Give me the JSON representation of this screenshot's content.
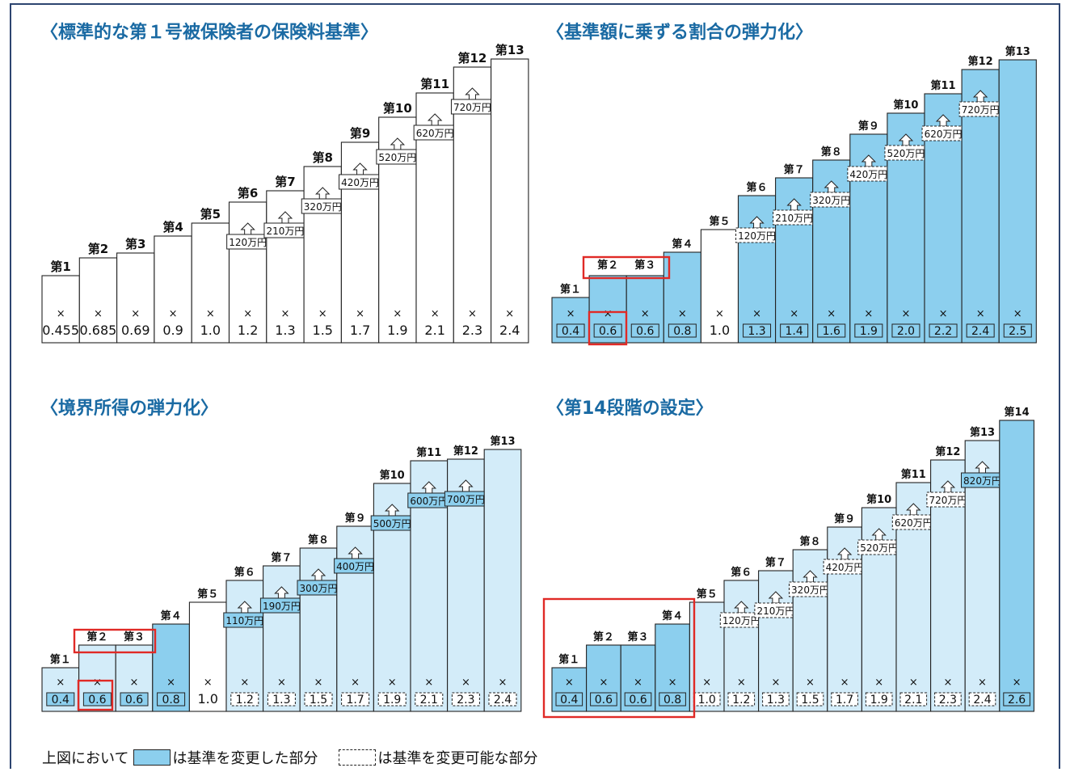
{
  "panels": [
    {
      "title": "〈標準的な第１号被保険者の保険料基準〉",
      "tiers": [
        {
          "label": "第1",
          "multiplier": "0.455",
          "style": "plain",
          "multBox": "none"
        },
        {
          "label": "第2",
          "multiplier": "0.685",
          "style": "plain",
          "multBox": "none"
        },
        {
          "label": "第3",
          "multiplier": "0.69",
          "style": "plain",
          "multBox": "none"
        },
        {
          "label": "第4",
          "multiplier": "0.9",
          "style": "plain",
          "multBox": "none"
        },
        {
          "label": "第5",
          "multiplier": "1.0",
          "style": "plain",
          "multBox": "none"
        },
        {
          "label": "第6",
          "multiplier": "1.2",
          "style": "plain",
          "multBox": "none",
          "threshold": "120万円",
          "thrBox": "plain"
        },
        {
          "label": "第7",
          "multiplier": "1.3",
          "style": "plain",
          "multBox": "none",
          "threshold": "210万円",
          "thrBox": "plain"
        },
        {
          "label": "第8",
          "multiplier": "1.5",
          "style": "plain",
          "multBox": "none",
          "threshold": "320万円",
          "thrBox": "plain"
        },
        {
          "label": "第9",
          "multiplier": "1.7",
          "style": "plain",
          "multBox": "none",
          "threshold": "420万円",
          "thrBox": "plain"
        },
        {
          "label": "第10",
          "multiplier": "1.9",
          "style": "plain",
          "multBox": "none",
          "threshold": "520万円",
          "thrBox": "plain"
        },
        {
          "label": "第11",
          "multiplier": "2.1",
          "style": "plain",
          "multBox": "none",
          "threshold": "620万円",
          "thrBox": "plain"
        },
        {
          "label": "第12",
          "multiplier": "2.3",
          "style": "plain",
          "multBox": "none",
          "threshold": "720万円",
          "thrBox": "plain"
        },
        {
          "label": "第13",
          "multiplier": "2.4",
          "style": "plain",
          "multBox": "none"
        }
      ]
    },
    {
      "title": "〈基準額に乗ずる割合の弾力化〉",
      "tiers": [
        {
          "label": "第１",
          "multiplier": "0.4",
          "style": "blue",
          "multBox": "solid"
        },
        {
          "label": "第２",
          "multiplier": "0.6",
          "style": "blue",
          "multBox": "solid"
        },
        {
          "label": "第３",
          "multiplier": "0.6",
          "style": "blue",
          "multBox": "solid"
        },
        {
          "label": "第４",
          "multiplier": "0.8",
          "style": "blue",
          "multBox": "solid"
        },
        {
          "label": "第５",
          "multiplier": "1.0",
          "style": "plain",
          "multBox": "none"
        },
        {
          "label": "第６",
          "multiplier": "1.3",
          "style": "blue",
          "multBox": "solid",
          "threshold": "120万円",
          "thrBox": "dashed"
        },
        {
          "label": "第７",
          "multiplier": "1.4",
          "style": "blue",
          "multBox": "solid",
          "threshold": "210万円",
          "thrBox": "dashed"
        },
        {
          "label": "第８",
          "multiplier": "1.6",
          "style": "blue",
          "multBox": "solid",
          "threshold": "320万円",
          "thrBox": "dashed"
        },
        {
          "label": "第９",
          "multiplier": "1.9",
          "style": "blue",
          "multBox": "solid",
          "threshold": "420万円",
          "thrBox": "dashed"
        },
        {
          "label": "第10",
          "multiplier": "2.0",
          "style": "blue",
          "multBox": "solid",
          "threshold": "520万円",
          "thrBox": "dashed"
        },
        {
          "label": "第11",
          "multiplier": "2.2",
          "style": "blue",
          "multBox": "solid",
          "threshold": "620万円",
          "thrBox": "dashed"
        },
        {
          "label": "第12",
          "multiplier": "2.4",
          "style": "blue",
          "multBox": "solid",
          "threshold": "720万円",
          "thrBox": "dashed"
        },
        {
          "label": "第13",
          "multiplier": "2.5",
          "style": "blue",
          "multBox": "solid"
        }
      ]
    },
    {
      "title": "〈境界所得の弾力化〉",
      "tiers": [
        {
          "label": "第１",
          "multiplier": "0.4",
          "style": "lightblue",
          "multBox": "solid"
        },
        {
          "label": "第２",
          "multiplier": "0.6",
          "style": "lightblue",
          "multBox": "solid"
        },
        {
          "label": "第３",
          "multiplier": "0.6",
          "style": "lightblue",
          "multBox": "solid"
        },
        {
          "label": "第４",
          "multiplier": "0.8",
          "style": "blue",
          "multBox": "solid"
        },
        {
          "label": "第５",
          "multiplier": "1.0",
          "style": "plain",
          "multBox": "none"
        },
        {
          "label": "第６",
          "multiplier": "1.2",
          "style": "lightblue",
          "multBox": "dashed",
          "threshold": "110万円",
          "thrBox": "solid"
        },
        {
          "label": "第７",
          "multiplier": "1.3",
          "style": "lightblue",
          "multBox": "dashed",
          "threshold": "190万円",
          "thrBox": "solid"
        },
        {
          "label": "第８",
          "multiplier": "1.5",
          "style": "lightblue",
          "multBox": "dashed",
          "threshold": "300万円",
          "thrBox": "solid"
        },
        {
          "label": "第９",
          "multiplier": "1.7",
          "style": "lightblue",
          "multBox": "dashed",
          "threshold": "400万円",
          "thrBox": "solid"
        },
        {
          "label": "第10",
          "multiplier": "1.9",
          "style": "lightblue",
          "multBox": "dashed",
          "threshold": "500万円",
          "thrBox": "solid"
        },
        {
          "label": "第11",
          "multiplier": "2.1",
          "style": "lightblue",
          "multBox": "dashed",
          "threshold": "600万円",
          "thrBox": "solid"
        },
        {
          "label": "第12",
          "multiplier": "2.3",
          "style": "lightblue",
          "multBox": "dashed",
          "threshold": "700万円",
          "thrBox": "solid"
        },
        {
          "label": "第13",
          "multiplier": "2.4",
          "style": "lightblue",
          "multBox": "dashed"
        }
      ]
    },
    {
      "title": "〈第14段階の設定〉",
      "tiers": [
        {
          "label": "第１",
          "multiplier": "0.4",
          "style": "blue",
          "multBox": "solid"
        },
        {
          "label": "第２",
          "multiplier": "0.6",
          "style": "blue",
          "multBox": "solid"
        },
        {
          "label": "第３",
          "multiplier": "0.6",
          "style": "blue",
          "multBox": "solid"
        },
        {
          "label": "第４",
          "multiplier": "0.8",
          "style": "blue",
          "multBox": "solid"
        },
        {
          "label": "第５",
          "multiplier": "1.0",
          "style": "lightblue",
          "multBox": "dashed"
        },
        {
          "label": "第６",
          "multiplier": "1.2",
          "style": "lightblue",
          "multBox": "dashed",
          "threshold": "120万円",
          "thrBox": "dashed"
        },
        {
          "label": "第７",
          "multiplier": "1.3",
          "style": "lightblue",
          "multBox": "dashed",
          "threshold": "210万円",
          "thrBox": "dashed"
        },
        {
          "label": "第８",
          "multiplier": "1.5",
          "style": "lightblue",
          "multBox": "dashed",
          "threshold": "320万円",
          "thrBox": "dashed"
        },
        {
          "label": "第９",
          "multiplier": "1.7",
          "style": "lightblue",
          "multBox": "dashed",
          "threshold": "420万円",
          "thrBox": "dashed"
        },
        {
          "label": "第10",
          "multiplier": "1.9",
          "style": "lightblue",
          "multBox": "dashed",
          "threshold": "520万円",
          "thrBox": "dashed"
        },
        {
          "label": "第11",
          "multiplier": "2.1",
          "style": "lightblue",
          "multBox": "dashed",
          "threshold": "620万円",
          "thrBox": "dashed"
        },
        {
          "label": "第12",
          "multiplier": "2.3",
          "style": "lightblue",
          "multBox": "dashed",
          "threshold": "720万円",
          "thrBox": "dashed"
        },
        {
          "label": "第13",
          "multiplier": "2.4",
          "style": "lightblue",
          "multBox": "dashed",
          "threshold": "820万円",
          "thrBox": "solid"
        },
        {
          "label": "第14",
          "multiplier": "2.6",
          "style": "blue",
          "multBox": "solid"
        }
      ]
    }
  ],
  "times_symbol": "×",
  "legend": {
    "prefix": "上図において",
    "solid_label": "は基準を変更した部分",
    "dashed_label": "は基準を変更可能な部分"
  },
  "colors": {
    "blue": "#8ccfee",
    "lightblue": "#d3ecf9",
    "plain": "#ffffff",
    "highlight": "#e02a26",
    "title": "#1a6aa3",
    "frame": "#2d4570"
  }
}
